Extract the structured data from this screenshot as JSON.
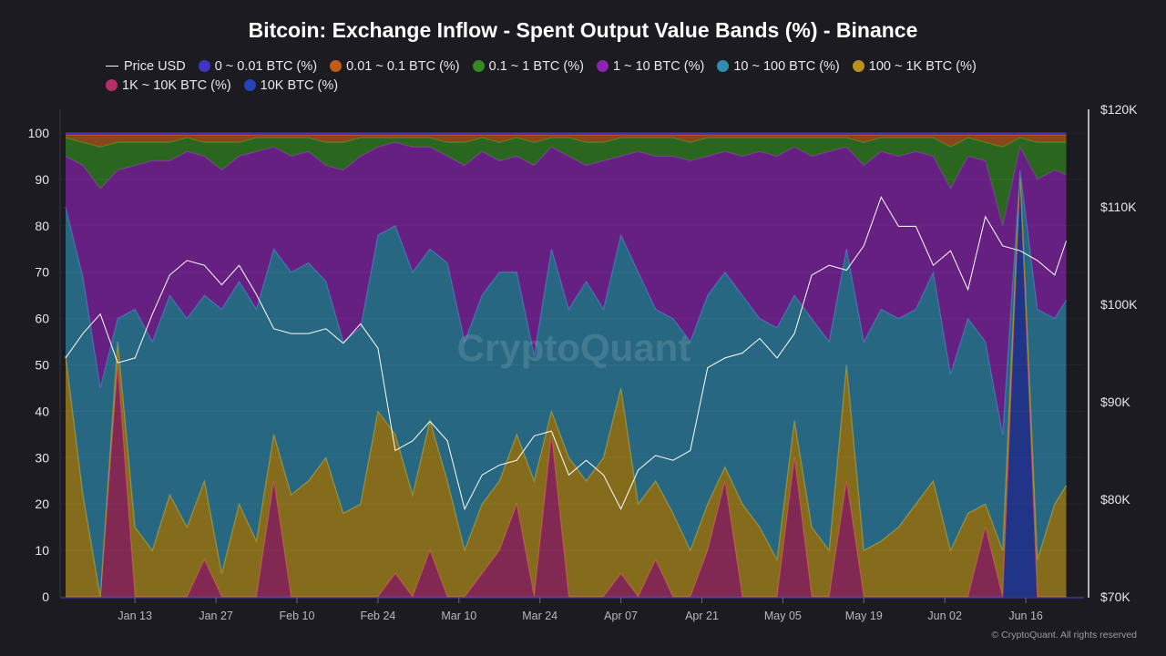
{
  "chart_data": {
    "type": "area",
    "stacked": true,
    "title": "Bitcoin: Exchange Inflow - Spent Output Value Bands (%) - Binance",
    "x": [
      "Jan 01",
      "Jan 04",
      "Jan 07",
      "Jan 10",
      "Jan 13",
      "Jan 16",
      "Jan 19",
      "Jan 22",
      "Jan 25",
      "Jan 28",
      "Jan 31",
      "Feb 03",
      "Feb 06",
      "Feb 09",
      "Feb 12",
      "Feb 15",
      "Feb 18",
      "Feb 21",
      "Feb 24",
      "Feb 27",
      "Mar 02",
      "Mar 05",
      "Mar 08",
      "Mar 11",
      "Mar 14",
      "Mar 17",
      "Mar 20",
      "Mar 23",
      "Mar 26",
      "Mar 29",
      "Apr 01",
      "Apr 04",
      "Apr 07",
      "Apr 10",
      "Apr 13",
      "Apr 16",
      "Apr 19",
      "Apr 22",
      "Apr 25",
      "Apr 28",
      "May 01",
      "May 04",
      "May 07",
      "May 10",
      "May 13",
      "May 16",
      "May 19",
      "May 22",
      "May 25",
      "May 28",
      "May 31",
      "Jun 03",
      "Jun 06",
      "Jun 09",
      "Jun 12",
      "Jun 15",
      "Jun 18",
      "Jun 21",
      "Jun 23"
    ],
    "x_ticks": [
      "Jan 13",
      "Jan 27",
      "Feb 10",
      "Feb 24",
      "Mar 10",
      "Mar 24",
      "Apr 07",
      "Apr 21",
      "May 05",
      "May 19",
      "Jun 02",
      "Jun 16"
    ],
    "y_left": {
      "ticks": [
        "0",
        "10",
        "20",
        "30",
        "40",
        "50",
        "60",
        "70",
        "80",
        "90",
        "100"
      ],
      "range": [
        0,
        100
      ]
    },
    "y_right": {
      "ticks": [
        "$70K",
        "$80K",
        "$90K",
        "$100K",
        "$110K",
        "$120K"
      ],
      "range": [
        70000,
        120000
      ]
    },
    "legend_position": "top",
    "grid": true,
    "series": [
      {
        "name": "10K BTC (%)",
        "color": "#2443b8",
        "values": [
          0,
          0,
          0,
          0,
          0,
          0,
          0,
          0,
          0,
          0,
          0,
          0,
          0,
          0,
          0,
          0,
          0,
          0,
          0,
          0,
          0,
          0,
          0,
          0,
          0,
          0,
          0,
          0,
          0,
          0,
          0,
          0,
          0,
          0,
          0,
          0,
          0,
          0,
          0,
          0,
          0,
          0,
          0,
          0,
          0,
          0,
          0,
          0,
          0,
          0,
          0,
          0,
          0,
          0,
          0,
          92,
          0,
          0,
          0
        ]
      },
      {
        "name": "1K ~ 10K BTC (%)",
        "color": "#b3306a",
        "values": [
          0,
          0,
          0,
          50,
          0,
          0,
          0,
          0,
          8,
          0,
          0,
          0,
          25,
          0,
          0,
          0,
          0,
          0,
          0,
          5,
          0,
          10,
          0,
          0,
          5,
          10,
          20,
          0,
          35,
          0,
          0,
          0,
          5,
          0,
          8,
          0,
          0,
          10,
          25,
          0,
          0,
          0,
          30,
          0,
          0,
          25,
          0,
          0,
          0,
          0,
          0,
          0,
          0,
          15,
          0,
          0,
          0,
          0,
          0
        ]
      },
      {
        "name": "100 ~ 1K BTC (%)",
        "color": "#b8931c",
        "values": [
          52,
          22,
          0,
          5,
          15,
          10,
          22,
          15,
          17,
          5,
          20,
          12,
          10,
          22,
          25,
          30,
          18,
          20,
          40,
          30,
          22,
          28,
          25,
          10,
          15,
          15,
          15,
          25,
          5,
          30,
          25,
          30,
          40,
          20,
          17,
          18,
          10,
          10,
          3,
          20,
          15,
          8,
          8,
          15,
          10,
          25,
          10,
          12,
          15,
          20,
          25,
          10,
          18,
          5,
          10,
          0,
          8,
          20,
          24
        ]
      },
      {
        "name": "10 ~ 100 BTC (%)",
        "color": "#2e8cb0",
        "values": [
          32,
          47,
          45,
          5,
          47,
          45,
          43,
          45,
          40,
          57,
          48,
          50,
          40,
          48,
          47,
          38,
          37,
          38,
          38,
          45,
          48,
          37,
          47,
          45,
          45,
          45,
          35,
          27,
          35,
          32,
          43,
          32,
          33,
          50,
          37,
          42,
          45,
          45,
          42,
          45,
          45,
          50,
          27,
          45,
          45,
          25,
          45,
          50,
          45,
          42,
          45,
          38,
          42,
          35,
          25,
          0,
          54,
          40,
          40
        ]
      },
      {
        "name": "1 ~ 10 BTC (%)",
        "color": "#8a24b0",
        "values": [
          11,
          24,
          43,
          32,
          31,
          39,
          29,
          36,
          30,
          30,
          27,
          34,
          22,
          25,
          24,
          25,
          37,
          37,
          19,
          18,
          27,
          22,
          23,
          38,
          31,
          24,
          25,
          41,
          22,
          33,
          25,
          32,
          17,
          26,
          33,
          35,
          39,
          30,
          26,
          30,
          36,
          37,
          32,
          35,
          41,
          22,
          38,
          34,
          35,
          34,
          25,
          40,
          35,
          39,
          45,
          5,
          28,
          32,
          27
        ]
      },
      {
        "name": "0.1 ~ 1 BTC (%)",
        "color": "#338a22",
        "values": [
          4,
          5,
          9,
          6,
          5,
          4,
          4,
          3,
          3,
          6,
          3,
          3,
          2,
          4,
          3,
          5,
          6,
          4,
          2,
          1,
          2,
          2,
          3,
          5,
          3,
          4,
          4,
          5,
          2,
          4,
          5,
          4,
          4,
          3,
          4,
          4,
          4,
          4,
          3,
          4,
          3,
          4,
          2,
          4,
          3,
          2,
          5,
          3,
          4,
          3,
          4,
          9,
          4,
          4,
          17,
          2,
          8,
          6,
          7
        ]
      },
      {
        "name": "0.01 ~ 0.1 BTC (%)",
        "color": "#c05c18",
        "values": [
          0.6,
          1.6,
          2.6,
          1.6,
          1.6,
          1.6,
          1.6,
          0.6,
          1.6,
          1.6,
          1.6,
          0.6,
          0.6,
          0.6,
          0.6,
          1.6,
          1.6,
          0.6,
          0.6,
          0.6,
          0.6,
          0.6,
          1.6,
          1.6,
          0.6,
          1.6,
          0.6,
          1.6,
          0.6,
          0.6,
          1.6,
          1.6,
          0.6,
          0.6,
          0.6,
          0.6,
          1.6,
          0.6,
          0.6,
          0.6,
          0.6,
          0.6,
          0.6,
          0.6,
          0.6,
          0.6,
          1.6,
          0.6,
          0.6,
          0.6,
          0.6,
          2.6,
          0.6,
          1.6,
          2.6,
          0.6,
          1.6,
          1.6,
          1.6
        ]
      },
      {
        "name": "0 ~ 0.01 BTC (%)",
        "color": "#3f36c0",
        "values": [
          0.4,
          0.4,
          0.4,
          0.4,
          0.4,
          0.4,
          0.4,
          0.4,
          0.4,
          0.4,
          0.4,
          0.4,
          0.4,
          0.4,
          0.4,
          0.4,
          0.4,
          0.4,
          0.4,
          0.4,
          0.4,
          0.4,
          0.4,
          0.4,
          0.4,
          0.4,
          0.4,
          0.4,
          0.4,
          0.4,
          0.4,
          0.4,
          0.4,
          0.4,
          0.4,
          0.4,
          0.4,
          0.4,
          0.4,
          0.4,
          0.4,
          0.4,
          0.4,
          0.4,
          0.4,
          0.4,
          0.4,
          0.4,
          0.4,
          0.4,
          0.4,
          0.4,
          0.4,
          0.4,
          0.4,
          0.4,
          0.4,
          0.4,
          0.4
        ]
      }
    ],
    "price": {
      "name": "Price USD",
      "color": "#ffffff",
      "axis": "right",
      "values": [
        94500,
        97000,
        99000,
        94000,
        94500,
        99000,
        103000,
        104500,
        104000,
        102000,
        104000,
        101000,
        97500,
        97000,
        97000,
        97500,
        96000,
        98000,
        95500,
        85000,
        86000,
        88000,
        86000,
        79000,
        82500,
        83500,
        84000,
        86500,
        87000,
        82500,
        84000,
        82500,
        79000,
        83000,
        84500,
        84000,
        85000,
        93500,
        94500,
        95000,
        96500,
        94500,
        97000,
        103000,
        104000,
        103500,
        106000,
        111000,
        108000,
        108000,
        104000,
        105500,
        101500,
        109000,
        106000,
        105500,
        104500,
        103000,
        106500
      ]
    }
  },
  "legend_order": [
    "Price USD",
    "0 ~ 0.01 BTC (%)",
    "0.01 ~ 0.1 BTC (%)",
    "0.1 ~ 1 BTC (%)",
    "1 ~ 10 BTC (%)",
    "10 ~ 100 BTC (%)",
    "100 ~ 1K BTC (%)",
    "1K ~ 10K BTC (%)",
    "10K BTC (%)"
  ],
  "watermark": "CryptoQuant",
  "copyright": "© CryptoQuant. All rights reserved"
}
